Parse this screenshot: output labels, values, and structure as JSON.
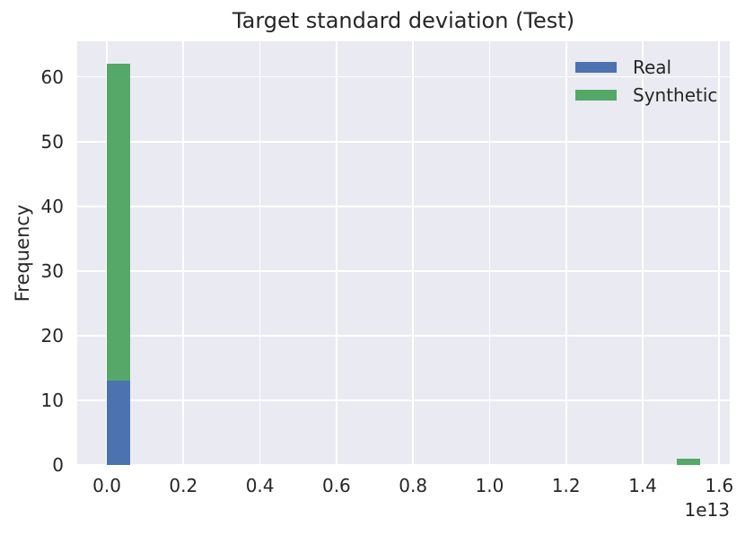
{
  "chart_data": {
    "type": "bar",
    "variant": "stacked-histogram",
    "title": "Target standard deviation (Test)",
    "xlabel": "",
    "ylabel": "Frequency",
    "x_offset_label": "1e13",
    "xlim": [
      -0.0775,
      1.6275
    ],
    "ylim": [
      0,
      65.5
    ],
    "xticks": [
      0.0,
      0.2,
      0.4,
      0.6,
      0.8,
      1.0,
      1.2,
      1.4,
      1.6
    ],
    "xtick_labels": [
      "0.0",
      "0.2",
      "0.4",
      "0.6",
      "0.8",
      "1.0",
      "1.2",
      "1.4",
      "1.6"
    ],
    "yticks": [
      0,
      10,
      20,
      30,
      40,
      50,
      60
    ],
    "ytick_labels": [
      "0",
      "10",
      "20",
      "30",
      "40",
      "50",
      "60"
    ],
    "grid": true,
    "legend_position": "upper right",
    "bin_width": 0.062,
    "series": [
      {
        "name": "Real",
        "color": "#4c72b0",
        "bars": [
          {
            "x0": 0.0,
            "x1": 0.062,
            "y0": 0,
            "y1": 13
          }
        ]
      },
      {
        "name": "Synthetic",
        "color": "#55a868",
        "bars": [
          {
            "x0": 0.0,
            "x1": 0.062,
            "y0": 13,
            "y1": 62
          },
          {
            "x0": 1.488,
            "x1": 1.55,
            "y0": 0,
            "y1": 1
          }
        ]
      }
    ],
    "colors": {
      "plot_background": "#eaeaf2",
      "grid": "#ffffff",
      "text": "#262626"
    }
  }
}
